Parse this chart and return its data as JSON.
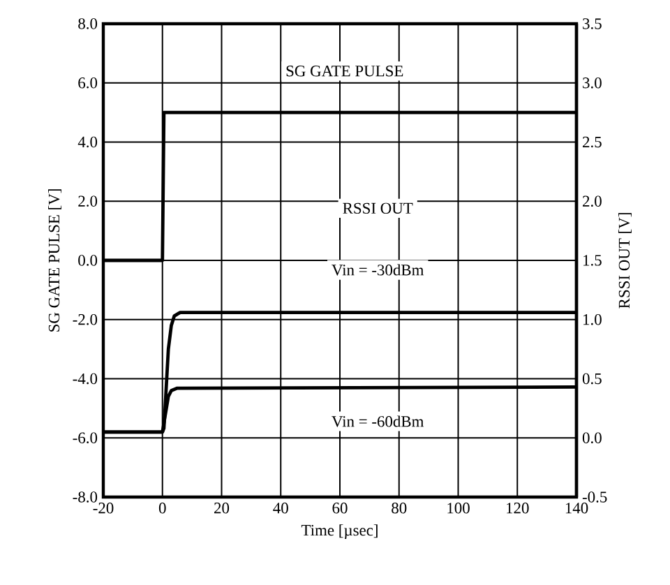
{
  "chart_data": {
    "type": "line",
    "xlabel": "Time [µsec]",
    "ylabel": "SG GATE PULSE [V]",
    "y2label": "RSSI OUT [V]",
    "xlim": [
      -20,
      140
    ],
    "xticks": [
      -20,
      0,
      20,
      40,
      60,
      80,
      100,
      120,
      140
    ],
    "ylim": [
      -8,
      8
    ],
    "yticks": [
      {
        "value": -8,
        "label": "-8.0"
      },
      {
        "value": -6,
        "label": "-6.0"
      },
      {
        "value": -4,
        "label": "-4.0"
      },
      {
        "value": -2,
        "label": "-2.0"
      },
      {
        "value": 0,
        "label": "0.0"
      },
      {
        "value": 2,
        "label": "2.0"
      },
      {
        "value": 4,
        "label": "4.0"
      },
      {
        "value": 6,
        "label": "6.0"
      },
      {
        "value": 8,
        "label": "8.0"
      }
    ],
    "y2lim": [
      -0.5,
      3.5
    ],
    "y2ticks": [
      -0.5,
      {
        "value": 0,
        "label": "0.0"
      },
      0.5,
      {
        "value": 1,
        "label": "1.0"
      },
      1.5,
      {
        "value": 2,
        "label": "2.0"
      },
      2.5,
      {
        "value": 3,
        "label": "3.0"
      },
      3.5
    ],
    "grid": true,
    "series": [
      {
        "name": "SG GATE PULSE",
        "color": "#000000",
        "x": [
          -20,
          0,
          0.5,
          140
        ],
        "values": [
          0,
          0,
          5,
          5
        ]
      },
      {
        "name": "Vin = -30dBm",
        "color": "#000000",
        "axis": "y2",
        "x": [
          -20,
          0,
          0.5,
          1,
          2,
          3,
          4,
          6,
          140
        ],
        "values": [
          0.05,
          0.05,
          0.08,
          0.3,
          0.75,
          0.95,
          1.03,
          1.06,
          1.06
        ]
      },
      {
        "name": "Vin = -60dBm",
        "color": "#000000",
        "axis": "y2",
        "x": [
          -20,
          0,
          1,
          2,
          3,
          5,
          140
        ],
        "values": [
          0.05,
          0.05,
          0.2,
          0.35,
          0.4,
          0.42,
          0.43
        ]
      }
    ],
    "annotations": [
      "RSSI OUT"
    ]
  }
}
